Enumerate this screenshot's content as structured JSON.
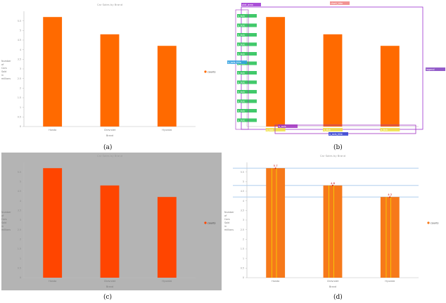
{
  "figure": {
    "panels": [
      {
        "id": "a",
        "caption": "(a)"
      },
      {
        "id": "b",
        "caption": "(b)"
      },
      {
        "id": "c",
        "caption": "(c)"
      },
      {
        "id": "d",
        "caption": "(d)"
      }
    ]
  },
  "colors": {
    "bar_a": "#ff6a00",
    "bar_b": "#ff6a00",
    "bar_c": "#ff4500",
    "bar_d": "#f6791a",
    "panel_c_bg": "#b4b4b4",
    "yline_d": "#a4c8ec",
    "yellow": "#f5e600",
    "val_label": "#d41c1c"
  },
  "annotation_chips": [
    {
      "text": "chart_title",
      "color": "#f08080"
    },
    {
      "text": "plot_area",
      "color": "#9b30d0"
    },
    {
      "text": "y_axis",
      "color": "#a030c0"
    },
    {
      "text": "x_axis",
      "color": "#a030c0"
    },
    {
      "text": "y_tick",
      "color": "#20c050"
    },
    {
      "text": "x_tick",
      "color": "#f0e040"
    },
    {
      "text": "legend",
      "color": "#8040c0"
    },
    {
      "text": "y_axis_title",
      "color": "#30a0e0"
    },
    {
      "text": "x_axis_title",
      "color": "#3040d0"
    }
  ],
  "chart_data": [
    {
      "type": "bar",
      "title": "Car Sales by Brand",
      "xlabel": "Brand",
      "ylabel": "Number of Cars Sold in millions",
      "categories": [
        "Honda",
        "Chevrolet",
        "Hyundai"
      ],
      "series": [
        {
          "name": "counts",
          "values": [
            5.7,
            4.8,
            4.2
          ]
        }
      ],
      "ylim": [
        0,
        6
      ],
      "yticks": [
        "0",
        "0.5",
        "1",
        "1.5",
        "2",
        "2.5",
        "3",
        "3.5",
        "4",
        "4.5",
        "5",
        "5.5"
      ],
      "legend": "right",
      "grid": false
    },
    {
      "type": "bar",
      "title": "",
      "xlabel": "",
      "ylabel": "",
      "categories": [
        "Honda",
        "Chevrolet",
        "Hyundai"
      ],
      "series": [
        {
          "values": [
            5.7,
            4.8,
            4.2
          ]
        }
      ],
      "ylim": [
        0,
        6
      ],
      "legend": "right",
      "grid": false
    },
    {
      "type": "bar",
      "title": "Car Sales by Brand",
      "xlabel": "Brand",
      "ylabel": "Number of Cars Sold in millions",
      "categories": [
        "Honda",
        "Chevrolet",
        "Hyundai"
      ],
      "series": [
        {
          "name": "counts",
          "values": [
            5.7,
            4.8,
            4.2
          ]
        }
      ],
      "ylim": [
        0,
        6
      ],
      "yticks": [
        "0",
        "0.5",
        "1",
        "1.5",
        "2",
        "2.5",
        "3",
        "3.5",
        "4",
        "4.5",
        "5",
        "5.5"
      ],
      "legend": "right",
      "grid": false
    },
    {
      "type": "bar",
      "title": "Car Sales by Brand",
      "xlabel": "Brand",
      "ylabel": "Number of Cars Sold in millions",
      "categories": [
        "Honda",
        "Chevrolet",
        "Hyundai"
      ],
      "series": [
        {
          "name": "counts",
          "values": [
            5.7,
            4.8,
            4.2
          ]
        }
      ],
      "data_labels": [
        "5.7",
        "4.8",
        "4.2"
      ],
      "ylim": [
        0,
        6
      ],
      "yticks": [
        "0",
        "0.5",
        "1",
        "1.5",
        "2",
        "2.5",
        "3",
        "3.5",
        "4",
        "4.5",
        "5",
        "5.5"
      ],
      "legend": "right",
      "grid": false
    }
  ]
}
